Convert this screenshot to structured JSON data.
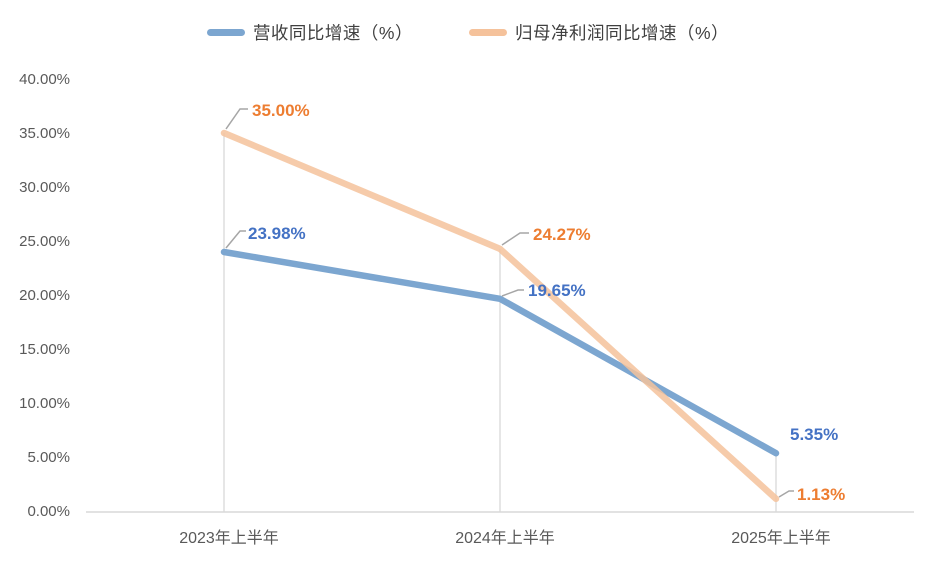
{
  "chart_data": {
    "type": "line",
    "title": "",
    "categories": [
      "2023年上半年",
      "2024年上半年",
      "2025年上半年"
    ],
    "series": [
      {
        "name": "营收同比增速（%）",
        "color": "#7CA6D0",
        "label_color": "#4472C4",
        "values": [
          23.98,
          19.65,
          5.35
        ],
        "data_labels": [
          "23.98%",
          "19.65%",
          "5.35%"
        ]
      },
      {
        "name": "归母净利润同比增速（%）",
        "color": "#F5C29B",
        "label_color": "#ED7D31",
        "values": [
          35.0,
          24.27,
          1.13
        ],
        "data_labels": [
          "35.00%",
          "24.27%",
          "1.13%"
        ]
      }
    ],
    "y_axis": {
      "min": 0,
      "max": 40,
      "step": 5,
      "tick_labels": [
        "0.00%",
        "5.00%",
        "10.00%",
        "15.00%",
        "20.00%",
        "25.00%",
        "30.00%",
        "35.00%",
        "40.00%"
      ]
    },
    "x_axis": {
      "line_visible": true
    },
    "grid": "category-drop-lines",
    "legend_position": "top"
  },
  "colors": {
    "background": "#FFFFFF",
    "axis_line": "#D9D9D9",
    "drop_line": "#D9D9D9",
    "leader_line": "#A6A6A6",
    "tick_text": "#595959",
    "legend_text": "#404040"
  }
}
